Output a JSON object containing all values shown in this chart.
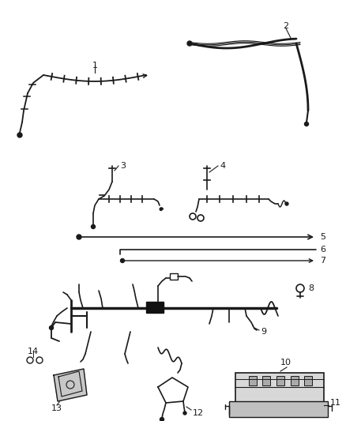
{
  "bg_color": "#ffffff",
  "lc": "#1a1a1a",
  "fig_width": 4.38,
  "fig_height": 5.33,
  "dpi": 100
}
